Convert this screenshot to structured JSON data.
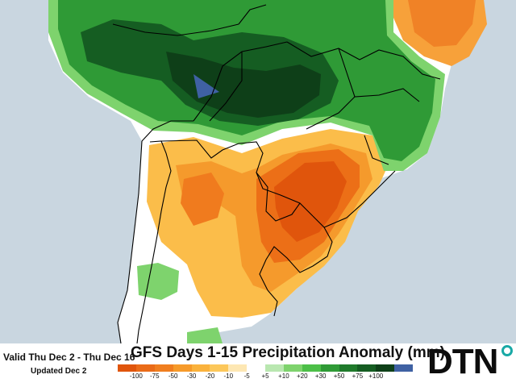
{
  "map": {
    "validity": "Valid Thu Dec 2 - Thu Dec 16",
    "updated": "Updated Dec 2",
    "title": "GFS Days 1-15 Precipitation Anomaly (mm)",
    "brand": "DTN",
    "region": "South America",
    "legend": {
      "unit": "mm",
      "colors": [
        "#e0550c",
        "#ea6b18",
        "#f07e1f",
        "#f69a2a",
        "#fab23c",
        "#fcc75a",
        "#fde7b3",
        "#ffffff",
        "#b9e7b0",
        "#7ed36d",
        "#4cbf48",
        "#2f9a36",
        "#1f7a2b",
        "#155d22",
        "#0e3f18",
        "#3f61a3"
      ],
      "labels": [
        "-100",
        "-75",
        "-50",
        "-30",
        "-20",
        "-10",
        "-5",
        "+5",
        "+10",
        "+20",
        "+30",
        "+50",
        "+75",
        "+100"
      ]
    },
    "colors": {
      "ocean": "#c9d6e0",
      "land_neutral": "#ffffff",
      "border": "#000000"
    }
  }
}
